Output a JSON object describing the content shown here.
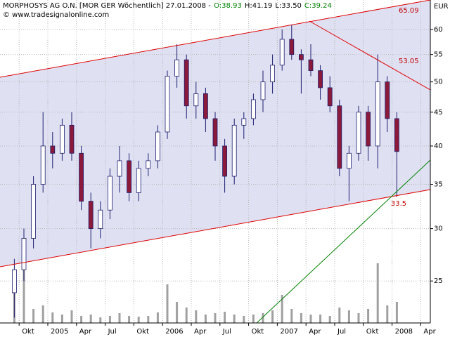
{
  "chart_data": {
    "type": "candlestick",
    "title_parts": [
      {
        "text": "MORPHOSYS AG O.N. [MOR GER  Wöchentlich] 27.01.2008 -",
        "color": "#000000"
      },
      {
        "text": "O:38.93",
        "color": "#008000"
      },
      {
        "text": "H:41.19",
        "color": "#000000"
      },
      {
        "text": "L:33.50",
        "color": "#000000"
      },
      {
        "text": "C:39.24",
        "color": "#008000"
      }
    ],
    "copyright": "© www.tradesignalonline.com",
    "currency": "EUR",
    "annotations": [
      {
        "text": "65.09",
        "color": "#c00000"
      },
      {
        "text": "53.05",
        "color": "#c00000"
      },
      {
        "text": "33.5",
        "color": "#c00000"
      }
    ],
    "x": [
      "2004-09",
      "2004-10",
      "2004-11",
      "2004-12",
      "2005-01",
      "2005-02",
      "2005-03",
      "2005-04",
      "2005-05",
      "2005-06",
      "2005-07",
      "2005-08",
      "2005-09",
      "2005-10",
      "2005-11",
      "2005-12",
      "2006-01",
      "2006-02",
      "2006-03",
      "2006-04",
      "2006-05",
      "2006-06",
      "2006-07",
      "2006-08",
      "2006-09",
      "2006-10",
      "2006-11",
      "2006-12",
      "2007-01",
      "2007-02",
      "2007-03",
      "2007-04",
      "2007-05",
      "2007-06",
      "2007-07",
      "2007-08",
      "2007-09",
      "2007-10",
      "2007-11",
      "2007-12",
      "2008-01"
    ],
    "open": [
      24,
      26,
      29,
      35,
      40,
      39,
      43,
      39,
      33,
      30,
      32,
      36,
      38,
      34,
      37,
      38,
      42,
      51,
      54,
      46,
      48,
      44,
      40,
      36,
      43,
      44,
      47,
      50,
      53,
      58,
      55,
      54,
      52,
      49,
      46,
      37,
      39,
      45,
      40,
      50,
      44
    ],
    "high": [
      27,
      30,
      36,
      45,
      42,
      44,
      45,
      40,
      34,
      33,
      37,
      40,
      39,
      38,
      39,
      43,
      52,
      57,
      55,
      50,
      49,
      45,
      41,
      44,
      45,
      48,
      52,
      55,
      60,
      61,
      56,
      57,
      53,
      51,
      47,
      40,
      46,
      46,
      55,
      51,
      45
    ],
    "low": [
      22,
      25,
      28,
      34,
      37,
      38,
      38,
      32,
      28,
      29,
      31,
      34,
      33,
      33,
      36,
      37,
      41,
      49,
      44,
      44,
      42,
      38,
      34,
      35,
      41,
      43,
      45,
      48,
      52,
      54,
      48,
      51,
      47,
      45,
      36,
      33,
      38,
      38,
      37,
      42,
      33.5
    ],
    "close": [
      26,
      29,
      35,
      40,
      39,
      43,
      39,
      33,
      30,
      32,
      36,
      38,
      34,
      37,
      38,
      42,
      51,
      54,
      46,
      48,
      44,
      40,
      36,
      43,
      44,
      47,
      50,
      53,
      58,
      55,
      54,
      52,
      49,
      46,
      37,
      39,
      45,
      40,
      50,
      44,
      39.24
    ],
    "volume": [
      60,
      90,
      20,
      25,
      15,
      12,
      18,
      10,
      12,
      8,
      10,
      14,
      10,
      9,
      10,
      15,
      55,
      30,
      22,
      18,
      12,
      14,
      16,
      12,
      10,
      12,
      14,
      18,
      40,
      20,
      14,
      12,
      12,
      10,
      22,
      18,
      14,
      20,
      85,
      25,
      30
    ],
    "up_color": "#ffffff",
    "down_color": "#8b1a3a",
    "edge_color": "#1c1c6e",
    "volume_color": "#a0a0a0",
    "ylim": [
      21.6,
      66.5
    ],
    "log_scale": true,
    "yticks": [
      25,
      30,
      35,
      40,
      45,
      50,
      55,
      60
    ],
    "xlim": [
      "2004-08",
      "2008-05"
    ],
    "xticks": [
      {
        "value": "2004-10",
        "label": "Okt"
      },
      {
        "value": "2005-01",
        "label": "2005"
      },
      {
        "value": "2005-04",
        "label": "Apr"
      },
      {
        "value": "2005-07",
        "label": "Jul"
      },
      {
        "value": "2005-10",
        "label": "Okt"
      },
      {
        "value": "2006-01",
        "label": "2006"
      },
      {
        "value": "2006-04",
        "label": "Apr"
      },
      {
        "value": "2006-07",
        "label": "Jul"
      },
      {
        "value": "2006-10",
        "label": "Okt"
      },
      {
        "value": "2007-01",
        "label": "2007"
      },
      {
        "value": "2007-04",
        "label": "Apr"
      },
      {
        "value": "2007-07",
        "label": "Jul"
      },
      {
        "value": "2007-10",
        "label": "Okt"
      },
      {
        "value": "2008-01",
        "label": "2008"
      },
      {
        "value": "2008-04",
        "label": "Apr"
      }
    ],
    "grid": true
  }
}
